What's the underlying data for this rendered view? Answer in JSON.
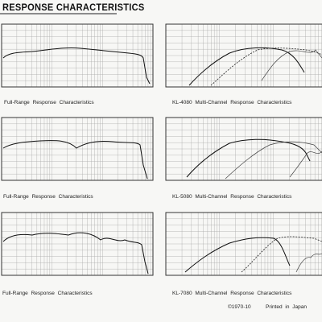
{
  "header": {
    "title": "RESPONSE CHARACTERISTICS"
  },
  "panels": [
    {
      "caption": "Full-Range  Response  Characteristics"
    },
    {
      "caption": "KL-4080  Multi-Channel  Response  Characteristics"
    },
    {
      "caption": "Full-Range  Response  Characteristics"
    },
    {
      "caption": "KL-5080  Multi-Channel  Response  Characteristics"
    },
    {
      "caption": "Full-Range  Response  Characteristics"
    },
    {
      "caption": "KL-7080  Multi-Channel  Response  Characteristics"
    }
  ],
  "footer": {
    "copyright": "©1970-10",
    "printed": "Printed  in  Japan"
  }
}
